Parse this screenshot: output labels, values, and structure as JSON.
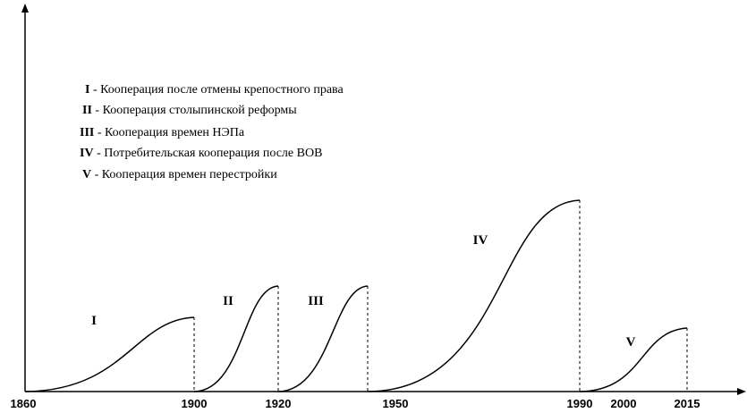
{
  "legend": [
    {
      "numeral": "I",
      "text": "- Кооперация после отмены крепостного права"
    },
    {
      "numeral": "II",
      "text": "- Кооперация столыпинской реформы"
    },
    {
      "numeral": "III",
      "text": "- Кооперация времен НЭПа"
    },
    {
      "numeral": "IV",
      "text": "- Потребительская кооперация после ВОВ"
    },
    {
      "numeral": "V",
      "text": "- Кооперация времен перестройки"
    }
  ],
  "curve_labels": [
    "I",
    "II",
    "III",
    "IV",
    "V"
  ],
  "axis_labels": [
    "1860",
    "1900",
    "1920",
    "1950",
    "1990",
    "2000",
    "2015"
  ]
}
